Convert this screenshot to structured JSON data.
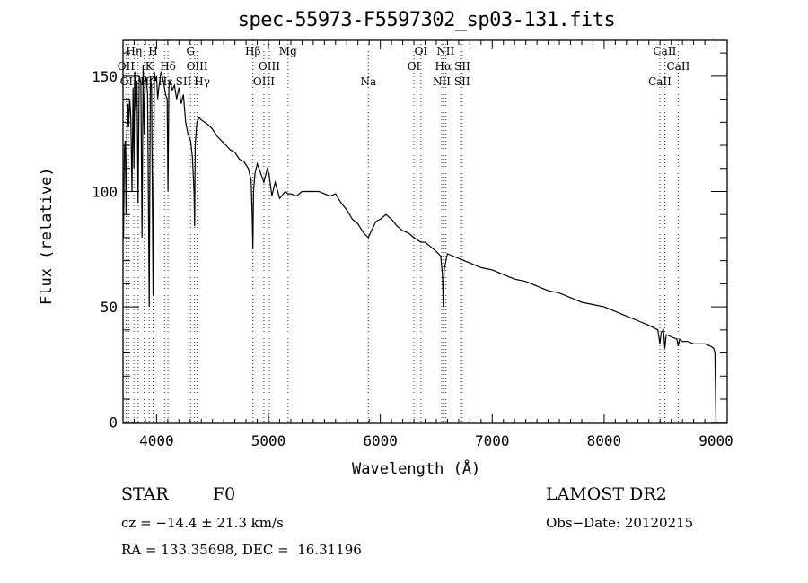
{
  "chart_data": {
    "type": "line",
    "title": "spec-55973-F5597302_sp03-131.fits",
    "xlabel": "Wavelength (Å)",
    "ylabel": "Flux (relative)",
    "xlim": [
      3700,
      9100
    ],
    "ylim": [
      -0.5,
      165.5
    ],
    "xticks": [
      4000,
      5000,
      6000,
      7000,
      8000,
      9000
    ],
    "xtick_labels": [
      "4000",
      "5000",
      "6000",
      "7000",
      "8000",
      "9000"
    ],
    "yticks": [
      0,
      50,
      100,
      150
    ],
    "ytick_labels": [
      "0",
      "50",
      "100",
      "150"
    ],
    "grid": false,
    "line_color": "#000000",
    "marker_color": "#8b1a1a",
    "series": [
      {
        "name": "flux",
        "x": [
          3705,
          3712,
          3720,
          3727,
          3735,
          3745,
          3750,
          3760,
          3770,
          3780,
          3790,
          3798,
          3805,
          3815,
          3825,
          3835,
          3845,
          3860,
          3870,
          3880,
          3889,
          3900,
          3910,
          3920,
          3934,
          3945,
          3955,
          3969,
          3980,
          3990,
          4000,
          4010,
          4020,
          4040,
          4060,
          4080,
          4095,
          4102,
          4110,
          4120,
          4140,
          4160,
          4180,
          4200,
          4220,
          4240,
          4260,
          4280,
          4304,
          4320,
          4335,
          4340,
          4345,
          4360,
          4380,
          4400,
          4430,
          4460,
          4500,
          4540,
          4580,
          4620,
          4660,
          4700,
          4740,
          4780,
          4820,
          4845,
          4855,
          4861,
          4867,
          4880,
          4900,
          4930,
          4959,
          4990,
          5007,
          5030,
          5060,
          5100,
          5150,
          5175,
          5200,
          5250,
          5300,
          5350,
          5400,
          5450,
          5500,
          5550,
          5600,
          5650,
          5700,
          5750,
          5800,
          5850,
          5893,
          5920,
          5960,
          6000,
          6050,
          6100,
          6150,
          6200,
          6250,
          6300,
          6363,
          6400,
          6450,
          6500,
          6540,
          6555,
          6563,
          6570,
          6600,
          6650,
          6700,
          6800,
          6900,
          7000,
          7100,
          7200,
          7300,
          7400,
          7500,
          7600,
          7700,
          7800,
          7900,
          8000,
          8100,
          8200,
          8300,
          8400,
          8480,
          8498,
          8510,
          8530,
          8542,
          8555,
          8600,
          8650,
          8662,
          8675,
          8700,
          8750,
          8800,
          8850,
          8900,
          8950,
          8980,
          8990,
          8995,
          9000
        ],
        "y": [
          80,
          118,
          122,
          90,
          125,
          138,
          128,
          140,
          132,
          100,
          145,
          110,
          152,
          135,
          148,
          95,
          150,
          147,
          80,
          155,
          125,
          150,
          148,
          142,
          50,
          150,
          145,
          55,
          152,
          148,
          150,
          140,
          145,
          152,
          148,
          142,
          140,
          100,
          145,
          148,
          144,
          146,
          140,
          145,
          138,
          142,
          130,
          125,
          122,
          115,
          100,
          85,
          120,
          130,
          132,
          131,
          130,
          129,
          127,
          124,
          122,
          120,
          118,
          117,
          114,
          113,
          110,
          105,
          90,
          75,
          100,
          108,
          112,
          108,
          104,
          110,
          107,
          98,
          104,
          97,
          100,
          99,
          99,
          98,
          100,
          100,
          100,
          100,
          99,
          98,
          99,
          95,
          92,
          88,
          86,
          82,
          80,
          83,
          87,
          88,
          90,
          88,
          85,
          83,
          82,
          80,
          78,
          78,
          76,
          74,
          72,
          64,
          50,
          66,
          73,
          72,
          71,
          69,
          67,
          66,
          64,
          62,
          61,
          59,
          57,
          56,
          54,
          52,
          51,
          50,
          48,
          46,
          44,
          42,
          40,
          34,
          39,
          40,
          32,
          38,
          37,
          36,
          33,
          36,
          35,
          35,
          34,
          34,
          34,
          33,
          32,
          30,
          15,
          0
        ]
      }
    ],
    "line_markers": [
      {
        "x": 3727,
        "label": "OII",
        "row": 2
      },
      {
        "x": 3750,
        "label": "OII",
        "row": 3
      },
      {
        "x": 3798,
        "label": "Hη",
        "row": 1
      },
      {
        "x": 3835,
        "label": "Hζ",
        "row": 3
      },
      {
        "x": 3889,
        "label": "Hε",
        "row": 3
      },
      {
        "x": 3934,
        "label": "K",
        "row": 2
      },
      {
        "x": 3969,
        "label": "H",
        "row": 1
      },
      {
        "x": 4072,
        "label": "SII",
        "row": 3
      },
      {
        "x": 4102,
        "label": "Hδ",
        "row": 2
      },
      {
        "x": 4304,
        "label": "G",
        "row": 1
      },
      {
        "x": 4340,
        "label": "Hγ",
        "row": 3
      },
      {
        "x": 4363,
        "label": "OIII",
        "row": 2
      },
      {
        "x": 4861,
        "label": "Hβ",
        "row": 1
      },
      {
        "x": 4959,
        "label": "OIII",
        "row": 3
      },
      {
        "x": 5007,
        "label": "OIII",
        "row": 2
      },
      {
        "x": 5175,
        "label": "Mg",
        "row": 1
      },
      {
        "x": 5893,
        "label": "Na",
        "row": 3
      },
      {
        "x": 6300,
        "label": "OI",
        "row": 2
      },
      {
        "x": 6363,
        "label": "OI",
        "row": 1
      },
      {
        "x": 6548,
        "label": "NII",
        "row": 3
      },
      {
        "x": 6563,
        "label": "Hα",
        "row": 2
      },
      {
        "x": 6583,
        "label": "NII",
        "row": 1
      },
      {
        "x": 6716,
        "label": "SII",
        "row": 2
      },
      {
        "x": 6731,
        "label": "SII",
        "row": 3
      },
      {
        "x": 8498,
        "label": "CaII",
        "row": 3
      },
      {
        "x": 8542,
        "label": "CaII",
        "row": 1
      },
      {
        "x": 8662,
        "label": "CaII",
        "row": 2
      }
    ]
  },
  "info": {
    "class": "STAR",
    "subclass": "F0",
    "survey": "LAMOST DR2",
    "cz": "cz = −14.4 ± 21.3 km/s",
    "obs_date": "Obs−Date: 20120215",
    "coords": "RA = 133.35698, DEC =  16.31196"
  }
}
